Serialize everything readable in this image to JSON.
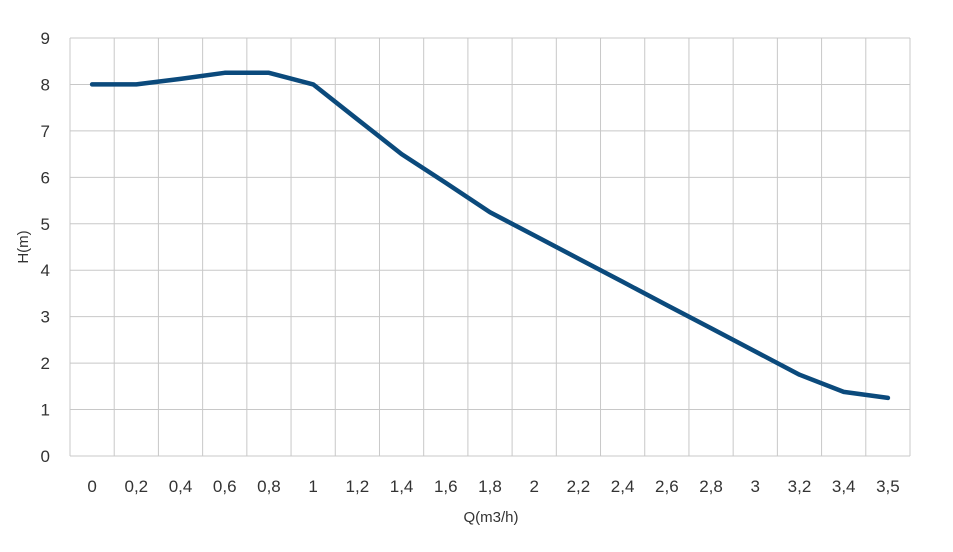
{
  "chart_data": {
    "type": "line",
    "title": "",
    "xlabel": "Q(m3/h)",
    "ylabel": "H(m)",
    "x_tick_labels": [
      "0",
      "0,2",
      "0,4",
      "0,6",
      "0,8",
      "1",
      "1,2",
      "1,4",
      "1,6",
      "1,8",
      "2",
      "2,2",
      "2,4",
      "2,6",
      "2,8",
      "3",
      "3,2",
      "3,4",
      "3,5"
    ],
    "y_tick_labels": [
      "0",
      "1",
      "2",
      "3",
      "4",
      "5",
      "6",
      "7",
      "8",
      "9"
    ],
    "ylim": [
      0,
      9
    ],
    "grid": true,
    "legend": "none",
    "series": [
      {
        "color": "#0b4a7c",
        "x_categories": [
          "0",
          "0,2",
          "0,4",
          "0,6",
          "0,8",
          "1",
          "1,2",
          "1,4",
          "1,6",
          "1,8",
          "2",
          "2,2",
          "2,4",
          "2,6",
          "2,8",
          "3",
          "3,2",
          "3,4",
          "3,5"
        ],
        "values": [
          8.0,
          8.0,
          8.12,
          8.25,
          8.25,
          8.0,
          7.25,
          6.5,
          5.88,
          5.25,
          4.75,
          4.25,
          3.75,
          3.25,
          2.75,
          2.25,
          1.75,
          1.38,
          1.25
        ]
      }
    ]
  }
}
